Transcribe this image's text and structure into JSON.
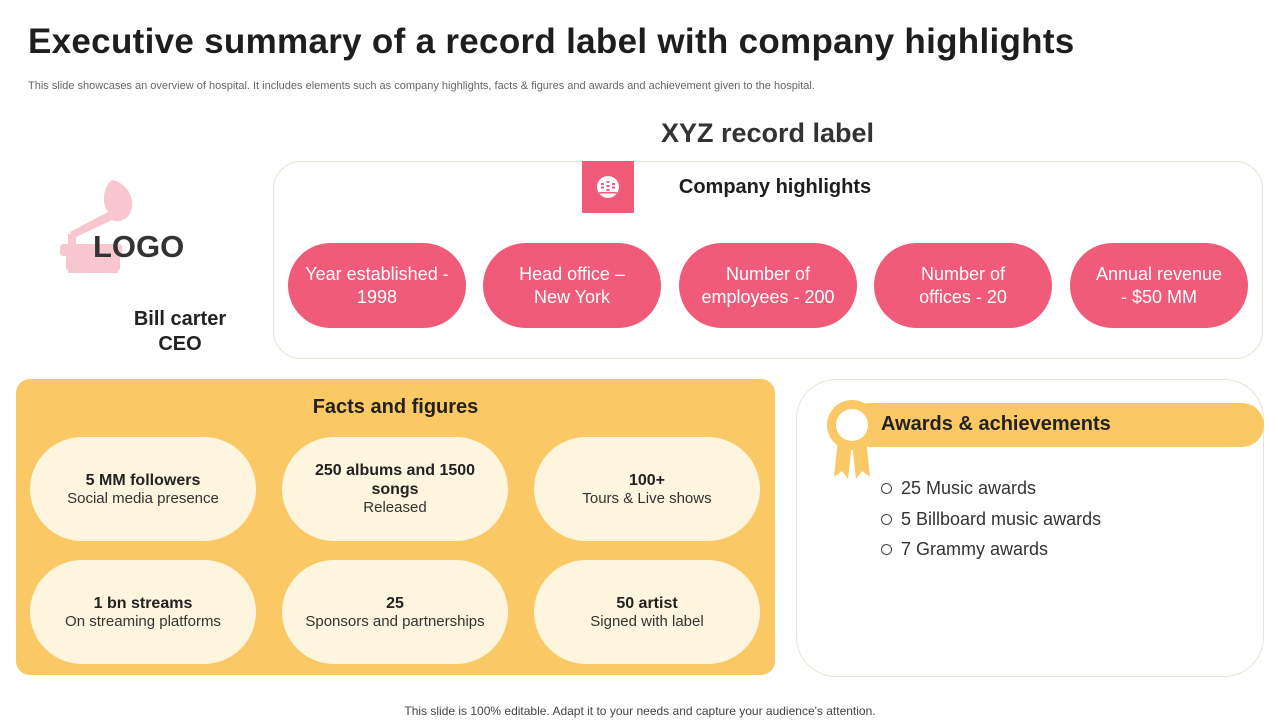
{
  "header": {
    "title": "Executive summary of a record label with company highlights",
    "subtitle": "This slide showcases an overview of hospital. It includes elements such as company highlights, facts & figures and awards and achievement given to the hospital."
  },
  "brand": {
    "logo_text": "LOGO",
    "ceo_name": "Bill carter",
    "ceo_role": "CEO",
    "logo_icon": "gramophone-icon"
  },
  "company": {
    "name": "XYZ record label",
    "highlights_heading": "Company highlights",
    "highlights_icon": "building-globe-icon",
    "highlights": [
      {
        "line1": "Year established -",
        "line2": "1998"
      },
      {
        "line1": "Head office –",
        "line2": "New York"
      },
      {
        "line1": "Number of",
        "line2": "employees - 200"
      },
      {
        "line1": "Number of",
        "line2": "offices - 20"
      },
      {
        "line1": "Annual revenue",
        "line2": "- $50 MM"
      }
    ]
  },
  "facts": {
    "heading": "Facts and figures",
    "items": [
      {
        "top": "5 MM followers",
        "bottom": "Social media presence"
      },
      {
        "top": "250 albums and 1500 songs",
        "bottom": "Released"
      },
      {
        "top": "100+",
        "bottom": "Tours & Live shows"
      },
      {
        "top": "1 bn streams",
        "bottom": "On streaming platforms"
      },
      {
        "top": "25",
        "bottom": "Sponsors and partnerships"
      },
      {
        "top": "50 artist",
        "bottom": "Signed with label"
      }
    ]
  },
  "awards": {
    "heading": "Awards & achievements",
    "icon": "medal-ribbon-icon",
    "items": [
      "25 Music awards",
      "5 Billboard music awards",
      "7 Grammy awards"
    ]
  },
  "footer": {
    "note": "This slide is 100% editable. Adapt it to your needs and capture your audience's attention."
  },
  "colors": {
    "accent_pink": "#ef5b78",
    "accent_yellow": "#fac864",
    "pale_cream": "#fdf5de",
    "border": "#e7e4cf"
  }
}
